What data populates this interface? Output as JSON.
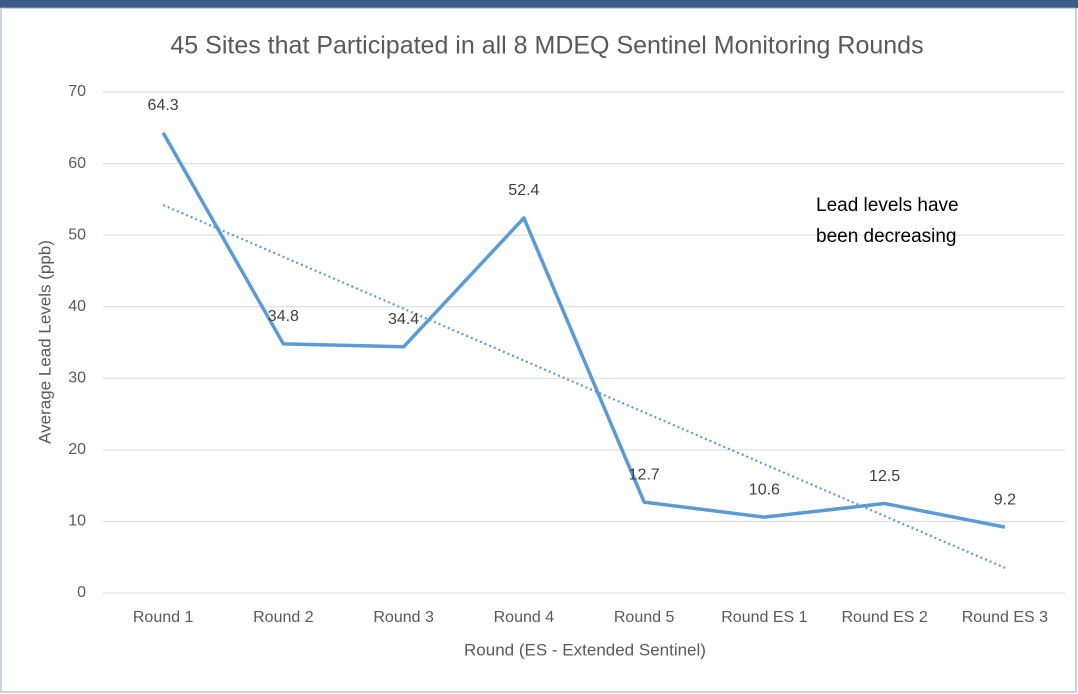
{
  "chart_data": {
    "type": "line",
    "title": "45 Sites that Participated in all 8 MDEQ Sentinel Monitoring Rounds",
    "x_label": "Round (ES - Extended Sentinel)",
    "y_label": "Average Lead Levels (ppb)",
    "annotation": "Lead levels have been decreasing",
    "categories": [
      "Round 1",
      "Round 2",
      "Round 3",
      "Round 4",
      "Round 5",
      "Round ES 1",
      "Round ES 2",
      "Round ES 3"
    ],
    "series": [
      {
        "name": "Average Lead Levels (ppb)",
        "color": "#5b9bd5",
        "values": [
          64.3,
          34.8,
          34.4,
          52.4,
          12.7,
          10.6,
          12.5,
          9.2
        ]
      }
    ],
    "ylim": [
      0,
      70
    ],
    "yticks": [
      0,
      10,
      20,
      30,
      40,
      50,
      60,
      70
    ],
    "grid": true,
    "trendline": true,
    "data_labels": true
  }
}
